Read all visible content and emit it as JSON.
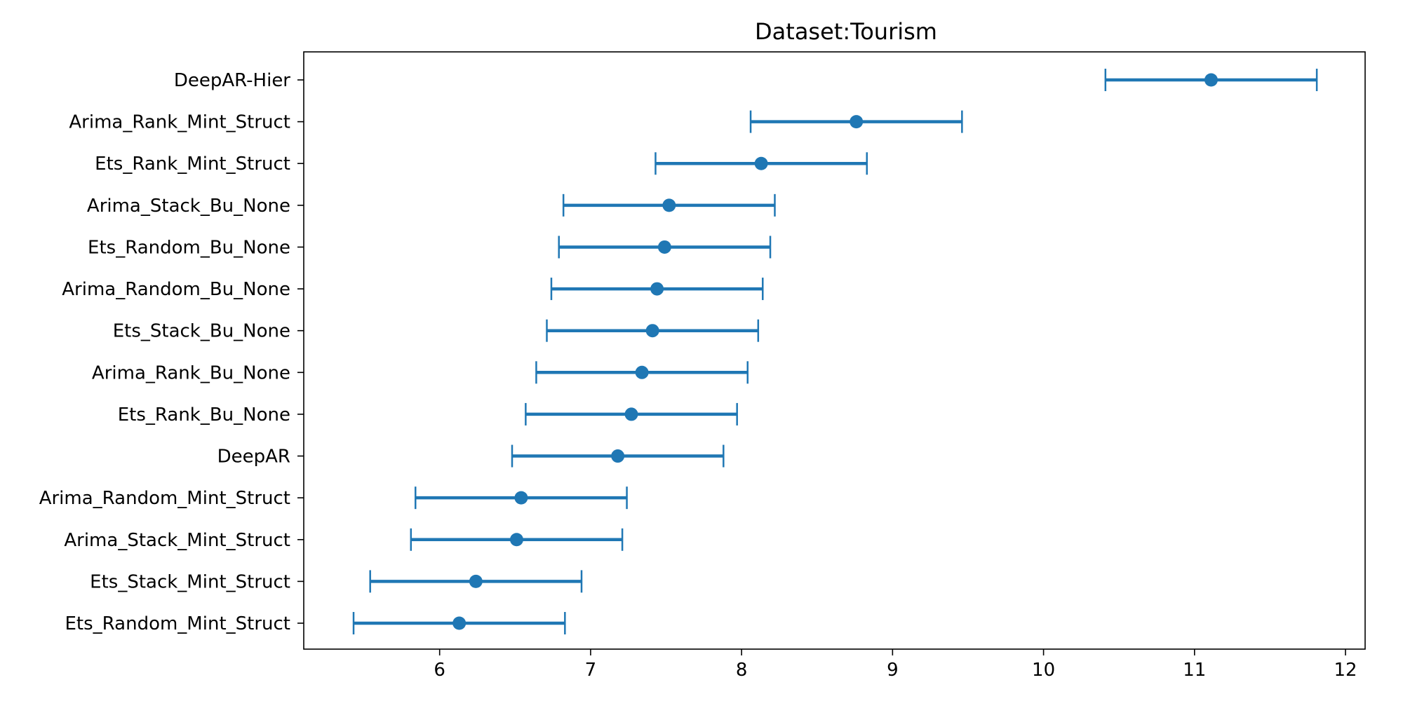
{
  "chart_data": {
    "type": "scatter",
    "title": "Dataset:Tourism",
    "xlabel": "",
    "ylabel": "",
    "xlim": [
      5.1,
      12.13
    ],
    "xticks": [
      6,
      7,
      8,
      9,
      10,
      11,
      12
    ],
    "grid": false,
    "color": "#1f77b4",
    "categories": [
      "DeepAR-Hier",
      "Arima_Rank_Mint_Struct",
      "Ets_Rank_Mint_Struct",
      "Arima_Stack_Bu_None",
      "Ets_Random_Bu_None",
      "Arima_Random_Bu_None",
      "Ets_Stack_Bu_None",
      "Arima_Rank_Bu_None",
      "Ets_Rank_Bu_None",
      "DeepAR",
      "Arima_Random_Mint_Struct",
      "Arima_Stack_Mint_Struct",
      "Ets_Stack_Mint_Struct",
      "Ets_Random_Mint_Struct"
    ],
    "series": [
      {
        "values": [
          11.11,
          8.76,
          8.13,
          7.52,
          7.49,
          7.44,
          7.41,
          7.34,
          7.27,
          7.18,
          6.54,
          6.51,
          6.24,
          6.13
        ],
        "lower": [
          10.41,
          8.06,
          7.43,
          6.82,
          6.79,
          6.74,
          6.71,
          6.64,
          6.57,
          6.48,
          5.84,
          5.81,
          5.54,
          5.43
        ],
        "upper": [
          11.81,
          9.46,
          8.83,
          8.22,
          8.19,
          8.14,
          8.11,
          8.04,
          7.97,
          7.88,
          7.24,
          7.21,
          6.94,
          6.83
        ]
      }
    ]
  }
}
